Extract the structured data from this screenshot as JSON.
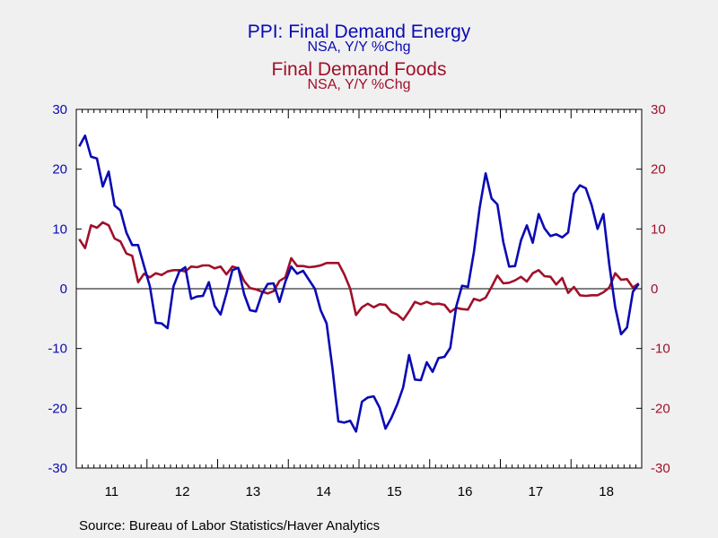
{
  "titles": {
    "energy_title": "PPI: Final Demand Energy",
    "energy_subtitle": "NSA, Y/Y %Chg",
    "foods_title": "Final Demand Foods",
    "foods_subtitle": "NSA, Y/Y %Chg"
  },
  "source": "Source:  Bureau of Labor Statistics/Haver Analytics",
  "colors": {
    "energy": "#0a0ab4",
    "foods": "#a0102a",
    "plot_bg": "#ffffff",
    "page_bg": "#f0f0f0"
  },
  "chart_data": {
    "type": "line",
    "x_start": "Jan 2011",
    "x_end": "Dec 2018",
    "x_frequency": "monthly",
    "x_tick_labels": [
      "11",
      "12",
      "13",
      "14",
      "15",
      "16",
      "17",
      "18"
    ],
    "ylim": [
      -30,
      30
    ],
    "y_ticks": [
      30,
      20,
      10,
      0,
      -10,
      -20,
      -30
    ],
    "y_tick_labels_left": [
      "30",
      "20",
      "10",
      "0",
      "-10",
      "-20",
      "-30"
    ],
    "y_tick_labels_right": [
      "30",
      "20",
      "10",
      "0",
      "-10",
      "-20",
      "-30"
    ],
    "zero_line": true,
    "grid": false,
    "series": [
      {
        "name": "PPI: Final Demand Energy",
        "axis": "left",
        "values": [
          23.8,
          25.6,
          22.1,
          21.8,
          17.1,
          19.6,
          13.9,
          13.1,
          9.4,
          7.3,
          7.3,
          3.8,
          0.4,
          -5.7,
          -5.8,
          -6.6,
          0.4,
          2.9,
          3.6,
          -1.7,
          -1.3,
          -1.2,
          1.1,
          -2.9,
          -4.3,
          -0.8,
          3.1,
          3.5,
          -0.9,
          -3.6,
          -3.8,
          -0.9,
          0.8,
          0.9,
          -2.2,
          1.2,
          3.7,
          2.5,
          3.0,
          1.5,
          0.0,
          -3.6,
          -5.8,
          -13.4,
          -22.2,
          -22.4,
          -22.1,
          -23.9,
          -18.9,
          -18.2,
          -18.0,
          -19.9,
          -23.4,
          -21.6,
          -19.3,
          -16.5,
          -11.1,
          -15.2,
          -15.3,
          -12.3,
          -13.9,
          -11.6,
          -11.4,
          -9.9,
          -3.0,
          0.5,
          0.3,
          6.1,
          13.6,
          19.3,
          15.1,
          14.1,
          7.8,
          3.7,
          3.8,
          8.1,
          10.6,
          7.7,
          12.5,
          10.1,
          8.8,
          9.1,
          8.6,
          9.4,
          15.9,
          17.3,
          16.8,
          14.0,
          10.0,
          12.5,
          4.0,
          -3.1,
          -7.6,
          -6.5,
          -0.5,
          0.8
        ]
      },
      {
        "name": "Final Demand Foods",
        "axis": "right",
        "values": [
          8.3,
          6.8,
          10.6,
          10.2,
          11.1,
          10.6,
          8.4,
          7.9,
          5.9,
          5.5,
          1.1,
          2.5,
          1.9,
          2.6,
          2.3,
          2.9,
          3.1,
          3.1,
          2.9,
          3.7,
          3.6,
          3.9,
          3.9,
          3.4,
          3.7,
          2.4,
          3.7,
          3.4,
          1.3,
          0.1,
          -0.1,
          -0.5,
          -0.8,
          -0.4,
          1.3,
          1.9,
          5.1,
          3.8,
          3.8,
          3.6,
          3.7,
          3.9,
          4.3,
          4.3,
          4.3,
          2.4,
          0.0,
          -4.4,
          -3.1,
          -2.5,
          -3.1,
          -2.6,
          -2.7,
          -3.9,
          -4.3,
          -5.2,
          -3.8,
          -2.2,
          -2.6,
          -2.2,
          -2.6,
          -2.5,
          -2.7,
          -3.9,
          -3.2,
          -3.4,
          -3.5,
          -1.7,
          -2.0,
          -1.5,
          0.3,
          2.2,
          0.9,
          1.0,
          1.4,
          2.0,
          1.2,
          2.6,
          3.1,
          2.1,
          2.0,
          0.7,
          1.8,
          -0.7,
          0.3,
          -1.1,
          -1.2,
          -1.1,
          -1.1,
          -0.6,
          0.2,
          2.6,
          1.5,
          1.6,
          0.2,
          0.9
        ]
      }
    ]
  }
}
